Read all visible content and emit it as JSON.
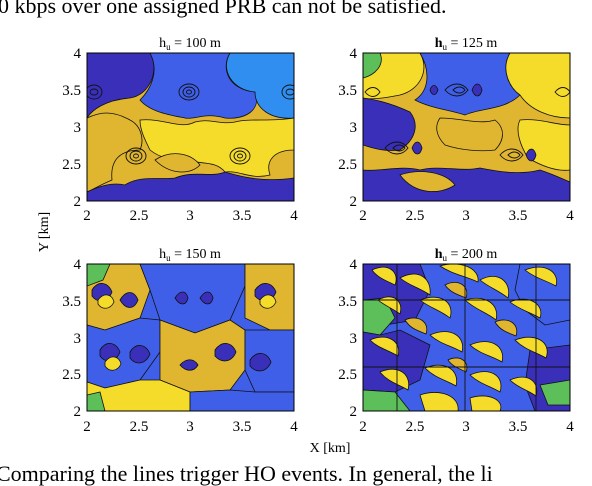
{
  "text": {
    "top_line": "0 kbps over one assigned PRB can not be satisfied.",
    "bottom_line": "Comparing the lines trigger HO events. In general, the li"
  },
  "figure": {
    "ylabel": "Y [km]",
    "xlabel": "X [km]",
    "panels": [
      {
        "title": "h_u = 100 m",
        "title_main": "h",
        "title_sub": "u",
        "title_rest": " = 100 m"
      },
      {
        "title": "h_u = 125 m",
        "title_main": "h",
        "title_sub": "u",
        "title_rest": " = 125 m"
      },
      {
        "title": "h_u = 150 m",
        "title_main": "h",
        "title_sub": "u",
        "title_rest": " = 150 m"
      },
      {
        "title": "h_u = 200 m",
        "title_main": "h",
        "title_sub": "u",
        "title_rest": " = 200 m"
      }
    ],
    "x_ticks": [
      "2",
      "2.5",
      "3",
      "3.5",
      "4"
    ],
    "y_ticks": [
      "2",
      "2.5",
      "3",
      "3.5",
      "4"
    ]
  },
  "chart_data": {
    "type": "heatmap",
    "panels": [
      {
        "title": "h_u = 100 m",
        "xlim": [
          2,
          4
        ],
        "ylim": [
          2,
          4
        ]
      },
      {
        "title": "h_u = 125 m",
        "xlim": [
          2,
          4
        ],
        "ylim": [
          2,
          4
        ]
      },
      {
        "title": "h_u = 150 m",
        "xlim": [
          2,
          4
        ],
        "ylim": [
          2,
          4
        ]
      },
      {
        "title": "h_u = 200 m",
        "xlim": [
          2,
          4
        ],
        "ylim": [
          2,
          4
        ]
      }
    ],
    "xlabel": "X [km]",
    "ylabel": "Y [km]",
    "x_ticks": [
      2,
      2.5,
      3,
      3.5,
      4
    ],
    "y_ticks": [
      2,
      2.5,
      3,
      3.5,
      4
    ]
  },
  "colors": {
    "dark_blue": "#3a2fb8",
    "blue": "#3f5fe8",
    "light_blue": "#2f8ef0",
    "gold": "#e0b530",
    "yellow": "#f6dc2a",
    "orange": "#f0a830",
    "green": "#5cbf5a"
  }
}
